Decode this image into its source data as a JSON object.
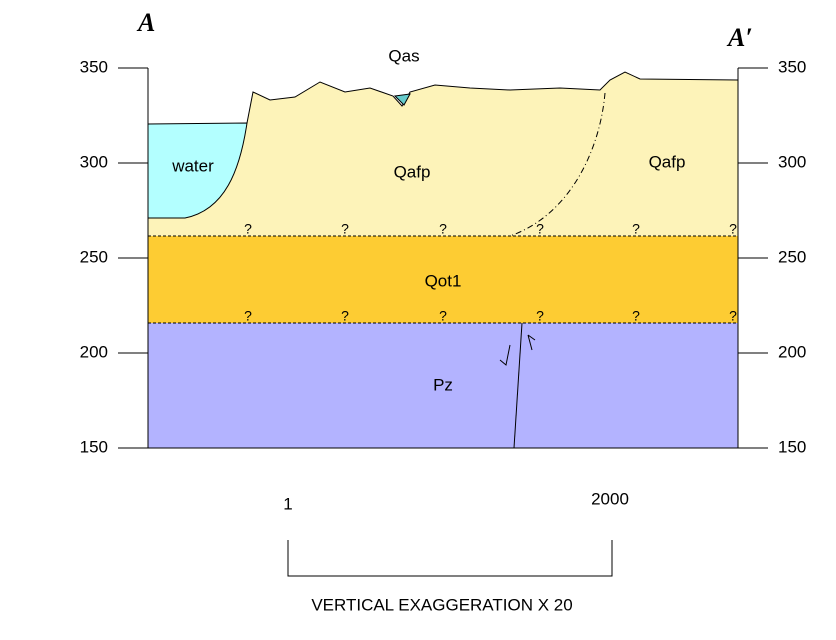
{
  "section": {
    "start_label": "A",
    "end_label": "A′"
  },
  "elevation_ticks": [
    350,
    300,
    250,
    200,
    150
  ],
  "units": {
    "water": "water",
    "qas": "Qas",
    "qafp_left": "Qafp",
    "qafp_right": "Qafp",
    "qot1": "Qot1",
    "pz": "Pz"
  },
  "contact_marks": {
    "upper": [
      "?",
      "?",
      "?",
      "?",
      "?",
      "?"
    ],
    "lower": [
      "?",
      "?",
      "?",
      "?",
      "?",
      "?"
    ]
  },
  "scale": {
    "start": 1,
    "end": 2000,
    "caption": "VERTICAL EXAGGERATION X 20"
  }
}
